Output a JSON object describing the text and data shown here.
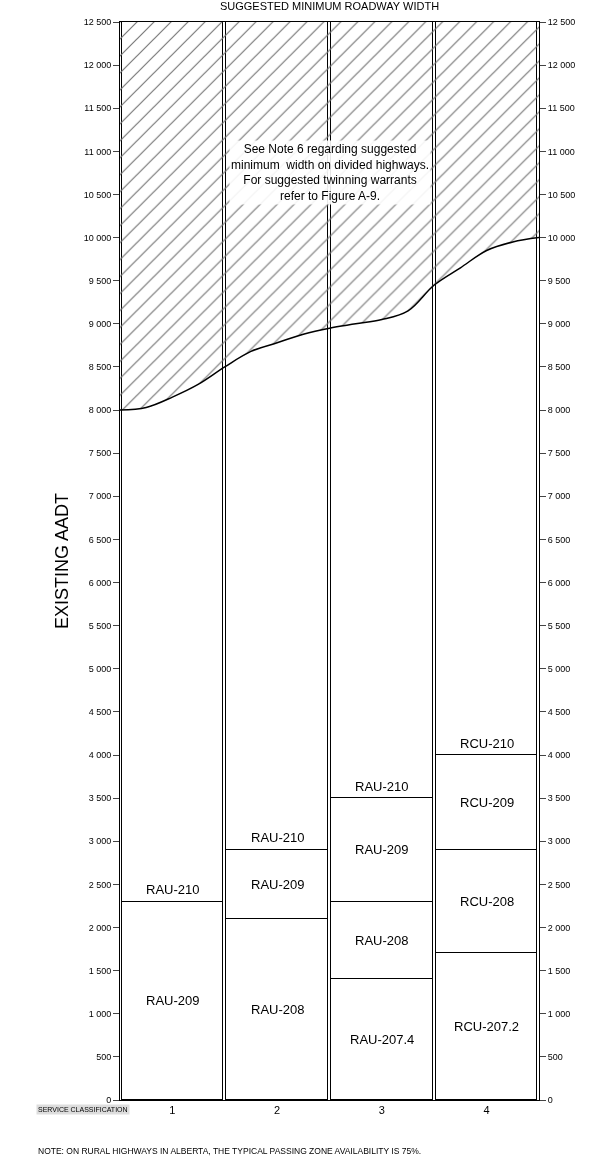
{
  "chart_data": {
    "type": "bar",
    "stacked": true,
    "title": "SUGGESTED MINIMUM ROADWAY WIDTH",
    "xlabel": "SERVICE CLASSIFICATION",
    "ylabel": "EXISTING AADT",
    "x": [
      0.5,
      1.5,
      2.5,
      3.5
    ],
    "xlim": [
      0,
      4
    ],
    "xticks": [
      {
        "value": 0.5,
        "label": "1"
      },
      {
        "value": 1.5,
        "label": "2"
      },
      {
        "value": 2.5,
        "label": "3"
      },
      {
        "value": 3.5,
        "label": "4"
      }
    ],
    "ylim": [
      0,
      12500
    ],
    "yticks": [
      0,
      500,
      {
        "value": 1000,
        "label": "1 000"
      },
      {
        "value": 1500,
        "label": "1 500"
      },
      {
        "value": 2000,
        "label": "2 000"
      },
      {
        "value": 2500,
        "label": "2 500"
      },
      {
        "value": 3000,
        "label": "3 000"
      },
      {
        "value": 3500,
        "label": "3 500"
      },
      {
        "value": 4000,
        "label": "4 000"
      },
      {
        "value": 4500,
        "label": "4 500"
      },
      {
        "value": 5000,
        "label": "5 000"
      },
      {
        "value": 5500,
        "label": "5 500"
      },
      {
        "value": 6000,
        "label": "6 000"
      },
      {
        "value": 6500,
        "label": "6 500"
      },
      {
        "value": 7000,
        "label": "7 000"
      },
      {
        "value": 7500,
        "label": "7 500"
      },
      {
        "value": 8000,
        "label": "8 000"
      },
      {
        "value": 8500,
        "label": "8 500"
      },
      {
        "value": 9000,
        "label": "9 000"
      },
      {
        "value": 9500,
        "label": "9 500"
      },
      {
        "value": 10000,
        "label": "10 000"
      },
      {
        "value": 10500,
        "label": "10 500"
      },
      {
        "value": 11000,
        "label": "11 000"
      },
      {
        "value": 11500,
        "label": "11 500"
      },
      {
        "value": 12000,
        "label": "12 000"
      },
      {
        "value": 12500,
        "label": "12 500"
      }
    ],
    "y2lim": [
      0,
      12500
    ],
    "y2ticks": [
      0,
      500,
      {
        "value": 1000,
        "label": "1 000"
      },
      {
        "value": 1500,
        "label": "1 500"
      },
      {
        "value": 2000,
        "label": "2 000"
      },
      {
        "value": 2500,
        "label": "2 500"
      },
      {
        "value": 3000,
        "label": "3 000"
      },
      {
        "value": 3500,
        "label": "3 500"
      },
      {
        "value": 4000,
        "label": "4 000"
      },
      {
        "value": 4500,
        "label": "4 500"
      },
      {
        "value": 5000,
        "label": "5 000"
      },
      {
        "value": 5500,
        "label": "5 500"
      },
      {
        "value": 6000,
        "label": "6 000"
      },
      {
        "value": 6500,
        "label": "6 500"
      },
      {
        "value": 7000,
        "label": "7 000"
      },
      {
        "value": 7500,
        "label": "7 500"
      },
      {
        "value": 8000,
        "label": "8 000"
      },
      {
        "value": 8500,
        "label": "8 500"
      },
      {
        "value": 9000,
        "label": "9 000"
      },
      {
        "value": 9500,
        "label": "9 500"
      },
      {
        "value": 10000,
        "label": "10 000"
      },
      {
        "value": 10500,
        "label": "10 500"
      },
      {
        "value": 11000,
        "label": "11 000"
      },
      {
        "value": 11500,
        "label": "11 500"
      },
      {
        "value": 12000,
        "label": "12 000"
      },
      {
        "value": 12500,
        "label": "12 500"
      }
    ],
    "grid": false,
    "series": [
      {
        "color": "#ffffff",
        "values": [
          2300,
          2100,
          1400,
          1700
        ],
        "value_labels": [
          "RAU-209",
          "RAU-208",
          "RAU-207.4",
          "RCU-207.2"
        ]
      },
      {
        "color": "#ffffff",
        "values": [
          10200,
          800,
          900,
          1200
        ],
        "value_labels": [
          "RAU-210",
          "RAU-209",
          "RAU-208",
          "RCU-208"
        ]
      },
      {
        "color": "#ffffff",
        "values": [
          null,
          9600,
          1200,
          1100
        ],
        "value_labels": [
          null,
          "RAU-210",
          "RAU-209",
          "RCU-209"
        ]
      },
      {
        "color": "#ffffff",
        "values": [
          null,
          null,
          9000,
          8500
        ],
        "value_labels": [
          null,
          null,
          "RAU-210",
          "RCU-210"
        ]
      },
      {
        "type": "line",
        "color": "#000000",
        "x": [
          0,
          0.25,
          0.5,
          0.75,
          1,
          1.25,
          1.5,
          1.75,
          2,
          2.25,
          2.5,
          2.75,
          3,
          3.25,
          3.5,
          3.75,
          4
        ],
        "values": [
          8000,
          8030,
          8150,
          8300,
          8500,
          8680,
          8780,
          8880,
          8950,
          9000,
          9050,
          9150,
          9450,
          9650,
          9850,
          9950,
          10000
        ]
      }
    ],
    "annotations": [
      {
        "text": "See Note 6 regarding suggested\nminimum  width on divided highways.\nFor suggested twinning warrants\nrefer to Figure A-9.",
        "x": 2,
        "y": 10750
      },
      "NOTE: ON RURAL HIGHWAYS IN ALBERTA, THE TYPICAL PASSING ZONE AVAILABILITY IS 75%."
    ]
  }
}
